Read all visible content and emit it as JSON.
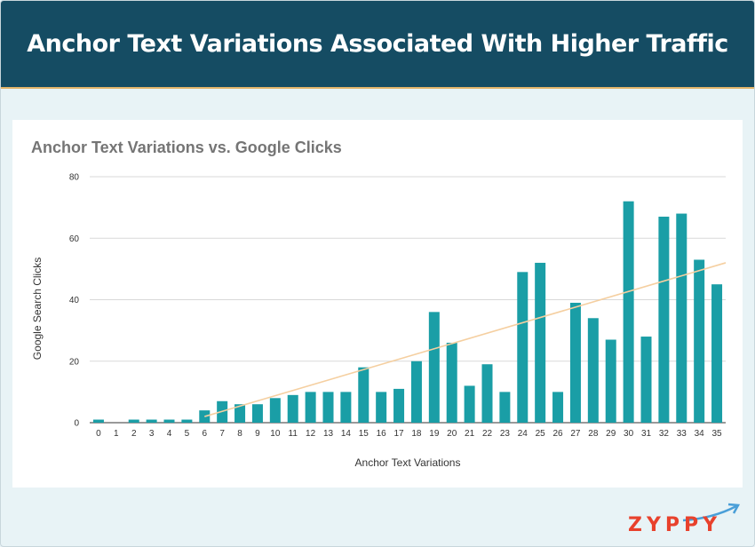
{
  "banner": {
    "title": "Anchor Text Variations Associated With Higher Traffic"
  },
  "logo": {
    "text": "ZYPPY",
    "text_color": "#e8412c",
    "arrow_color": "#4a9fd8"
  },
  "colors": {
    "bar": "#1a9ea6",
    "trend": "#f5cfa0",
    "grid": "#d9d9d9",
    "header": "#154c63"
  },
  "chart_data": {
    "type": "bar",
    "title": "Anchor Text Variations vs. Google Clicks",
    "xlabel": "Anchor Text Variations",
    "ylabel": "Google Search Clicks",
    "ylim": [
      0,
      80
    ],
    "yticks": [
      0,
      20,
      40,
      60,
      80
    ],
    "grid": true,
    "categories": [
      "0",
      "1",
      "2",
      "3",
      "4",
      "5",
      "6",
      "7",
      "8",
      "9",
      "10",
      "11",
      "12",
      "13",
      "14",
      "15",
      "16",
      "17",
      "18",
      "19",
      "20",
      "21",
      "22",
      "23",
      "24",
      "25",
      "26",
      "27",
      "28",
      "29",
      "30",
      "31",
      "32",
      "33",
      "34",
      "35"
    ],
    "values": [
      1,
      0,
      1,
      1,
      1,
      1,
      4,
      7,
      6,
      6,
      8,
      9,
      10,
      10,
      10,
      18,
      10,
      11,
      20,
      36,
      26,
      12,
      19,
      10,
      49,
      52,
      10,
      39,
      34,
      27,
      72,
      28,
      67,
      68,
      53,
      45
    ],
    "trendline": {
      "type": "linear",
      "from": {
        "x": 6,
        "y": 2
      },
      "to": {
        "x": 35,
        "y": 52
      }
    }
  }
}
